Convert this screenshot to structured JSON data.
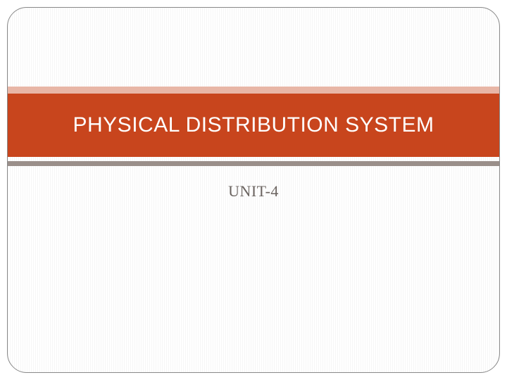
{
  "slide": {
    "title": "PHYSICAL DISTRIBUTION SYSTEM",
    "subtitle": "UNIT-4"
  },
  "style": {
    "title_band_color": "#c8451d",
    "accent_top_color": "#e8b6a6",
    "accent_bottom_color": "#9a8f8a",
    "title_text_color": "#ffffff",
    "subtitle_color": "#6b6460",
    "background_stripe_light": "#ffffff",
    "background_stripe_dark": "#f6f6f6",
    "border_color": "#888888",
    "border_radius": 28,
    "title_fontsize": 30,
    "subtitle_fontsize": 22,
    "slide_width": 720,
    "slide_height": 540
  }
}
